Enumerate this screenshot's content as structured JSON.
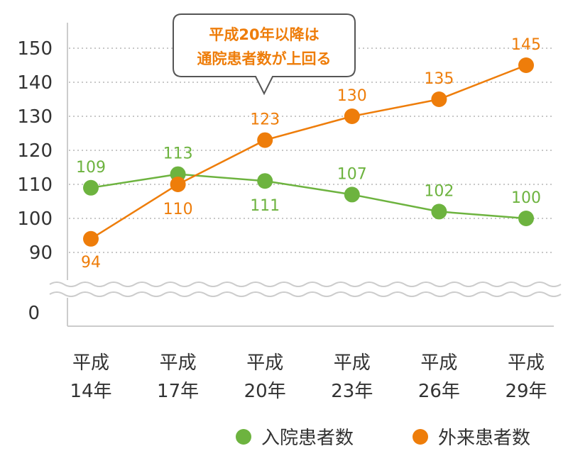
{
  "chart_data": {
    "type": "line",
    "categories": [
      [
        "平成",
        "14年"
      ],
      [
        "平成",
        "17年"
      ],
      [
        "平成",
        "20年"
      ],
      [
        "平成",
        "23年"
      ],
      [
        "平成",
        "26年"
      ],
      [
        "平成",
        "29年"
      ]
    ],
    "series": [
      {
        "name": "入院患者数",
        "color": "#6db33f",
        "values": [
          109,
          113,
          111,
          107,
          102,
          100
        ]
      },
      {
        "name": "外来患者数",
        "color": "#ee7d0a",
        "values": [
          94,
          110,
          123,
          130,
          135,
          145
        ]
      }
    ],
    "yticks": [
      150,
      140,
      130,
      120,
      110,
      100,
      90
    ],
    "ybreak_tick": "0",
    "ylim": [
      90,
      150
    ],
    "axis_break": true,
    "grid": "dotted",
    "legend": "bottom-right",
    "callout": {
      "lines": [
        "平成20年以降は",
        "通院患者数が上回る"
      ],
      "color": "#ee7d0a"
    }
  }
}
